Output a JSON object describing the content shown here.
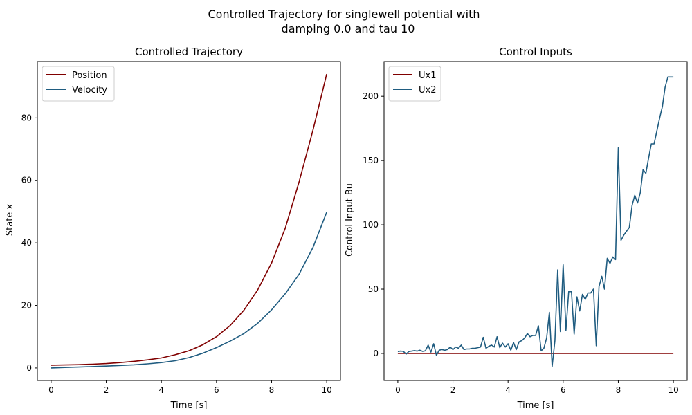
{
  "figure": {
    "suptitle_line1": "Controlled Trajectory for singlewell potential with",
    "suptitle_line2": "damping 0.0 and tau 10"
  },
  "chart_data": [
    {
      "type": "line",
      "title": "Controlled Trajectory",
      "xlabel": "Time [s]",
      "ylabel": "State x",
      "xlim": [
        -0.5,
        10.5
      ],
      "ylim": [
        -4,
        98
      ],
      "xticks": [
        0,
        2,
        4,
        6,
        8,
        10
      ],
      "yticks": [
        0,
        20,
        40,
        60,
        80
      ],
      "grid": false,
      "legend": "top-left",
      "series": [
        {
          "name": "Position",
          "color": "#800000",
          "x": [
            0,
            0.5,
            1,
            1.5,
            2,
            2.5,
            3,
            3.5,
            4,
            4.5,
            5,
            5.5,
            6,
            6.5,
            7,
            7.5,
            8,
            8.5,
            9,
            9.5,
            10
          ],
          "y": [
            0.9,
            0.95,
            1.05,
            1.2,
            1.4,
            1.7,
            2.1,
            2.6,
            3.2,
            4.2,
            5.5,
            7.4,
            10.0,
            13.6,
            18.5,
            25.0,
            33.6,
            44.8,
            59.6,
            76.0,
            94.0
          ]
        },
        {
          "name": "Velocity",
          "color": "#1f5c80",
          "x": [
            0,
            0.5,
            1,
            1.5,
            2,
            2.5,
            3,
            3.5,
            4,
            4.5,
            5,
            5.5,
            6,
            6.5,
            7,
            7.5,
            8,
            8.5,
            9,
            9.5,
            10
          ],
          "y": [
            0.0,
            0.15,
            0.3,
            0.45,
            0.6,
            0.8,
            1.0,
            1.3,
            1.7,
            2.3,
            3.3,
            4.7,
            6.5,
            8.6,
            11.0,
            14.3,
            18.6,
            23.8,
            30.0,
            38.5,
            49.8
          ]
        }
      ]
    },
    {
      "type": "line",
      "title": "Control Inputs",
      "xlabel": "Time [s]",
      "ylabel": "Control Input Bu",
      "xlim": [
        -0.5,
        10.5
      ],
      "ylim": [
        -21,
        227
      ],
      "xticks": [
        0,
        2,
        4,
        6,
        8,
        10
      ],
      "yticks": [
        0,
        50,
        100,
        150,
        200
      ],
      "grid": false,
      "legend": "top-left",
      "series": [
        {
          "name": "Ux1",
          "color": "#800000",
          "x": [
            0,
            10
          ],
          "y": [
            0,
            0
          ]
        },
        {
          "name": "Ux2",
          "color": "#1f5c80",
          "x": [
            0,
            0.1,
            0.2,
            0.3,
            0.4,
            0.5,
            0.6,
            0.7,
            0.8,
            0.9,
            1.0,
            1.1,
            1.2,
            1.3,
            1.4,
            1.5,
            1.6,
            1.7,
            1.8,
            1.9,
            2.0,
            2.1,
            2.2,
            2.3,
            2.4,
            2.5,
            2.6,
            2.7,
            2.8,
            2.9,
            3.0,
            3.1,
            3.2,
            3.3,
            3.4,
            3.5,
            3.6,
            3.7,
            3.8,
            3.9,
            4.0,
            4.1,
            4.2,
            4.3,
            4.4,
            4.5,
            4.6,
            4.7,
            4.8,
            4.9,
            5.0,
            5.1,
            5.2,
            5.3,
            5.4,
            5.5,
            5.6,
            5.7,
            5.8,
            5.9,
            6.0,
            6.1,
            6.2,
            6.3,
            6.4,
            6.5,
            6.6,
            6.7,
            6.8,
            6.9,
            7.0,
            7.1,
            7.2,
            7.3,
            7.4,
            7.5,
            7.6,
            7.7,
            7.8,
            7.9,
            8.0,
            8.1,
            8.2,
            8.3,
            8.4,
            8.5,
            8.6,
            8.7,
            8.8,
            8.9,
            9.0,
            9.1,
            9.2,
            9.3,
            9.4,
            9.5,
            9.6,
            9.7,
            9.8,
            9.9,
            10.0
          ],
          "y": [
            1.5,
            1.8,
            1.6,
            -0.5,
            1.5,
            1.8,
            2.2,
            1.8,
            2.5,
            1.6,
            2.0,
            6.5,
            1.0,
            7.5,
            -1.5,
            2.5,
            3.0,
            2.5,
            3.0,
            5.0,
            3.0,
            5.0,
            4.0,
            6.5,
            3.0,
            3.5,
            3.5,
            4.0,
            4.0,
            4.5,
            5.0,
            12.5,
            4.0,
            5.5,
            6.5,
            5.0,
            13.0,
            4.5,
            8.0,
            5.0,
            7.5,
            2.5,
            8.5,
            3.0,
            9.0,
            10.0,
            12.0,
            15.5,
            13.0,
            14.0,
            14.0,
            21.5,
            2.0,
            4.0,
            12.0,
            32.0,
            -10.0,
            10.0,
            65.0,
            17.0,
            69.0,
            18.0,
            48.0,
            48.0,
            15.0,
            44.0,
            33.0,
            46.0,
            42.0,
            47.0,
            47.0,
            50.0,
            6.0,
            52.0,
            60.0,
            50.0,
            74.0,
            70.0,
            75.0,
            73.0,
            160.0,
            88.0,
            92.0,
            95.0,
            98.0,
            115.0,
            123.0,
            117.0,
            125.0,
            143.0,
            140.0,
            152.0,
            163.0,
            163.0,
            173.0,
            183.0,
            192.0,
            207.0,
            215.0,
            215.0,
            215.0
          ]
        }
      ]
    }
  ]
}
